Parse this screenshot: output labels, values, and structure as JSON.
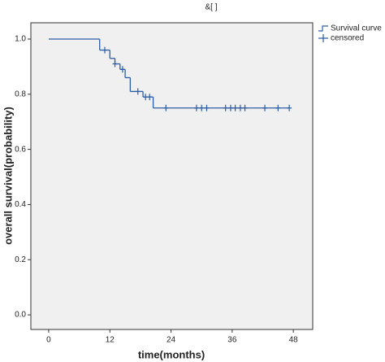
{
  "chart_data": {
    "type": "survival",
    "title": "&[          ]",
    "x_label": "time(months)",
    "y_label": "overall survival(probability)",
    "xlim": [
      -3.5,
      51.8
    ],
    "ylim": [
      -0.053,
      1.059
    ],
    "xticks": [
      0,
      12,
      24,
      36,
      48
    ],
    "yticks": [
      {
        "value": 0,
        "label": "0.0"
      },
      0.2,
      0.4,
      0.6,
      0.8,
      {
        "value": 1,
        "label": "1.0"
      }
    ],
    "grid": false,
    "legend": "top-right",
    "series": [
      {
        "name": "Survival curve",
        "color": "#2d5da6",
        "x": [
          0,
          10,
          12,
          13,
          14,
          15,
          16,
          18.5,
          20.5,
          47.2
        ],
        "values": [
          1.0,
          0.96,
          0.93,
          0.91,
          0.89,
          0.86,
          0.81,
          0.79,
          0.75,
          0.75
        ]
      },
      {
        "name": "censored",
        "color": "#2d5da6",
        "x": [
          11,
          13,
          14.5,
          17.5,
          19,
          19.8,
          23,
          29,
          30,
          31,
          34.7,
          35.7,
          36.6,
          37.6,
          38.5,
          42.4,
          45,
          47.2
        ],
        "values": [
          0.96,
          0.91,
          0.89,
          0.81,
          0.79,
          0.79,
          0.75,
          0.75,
          0.75,
          0.75,
          0.75,
          0.75,
          0.75,
          0.75,
          0.75,
          0.75,
          0.75,
          0.75
        ]
      }
    ]
  }
}
